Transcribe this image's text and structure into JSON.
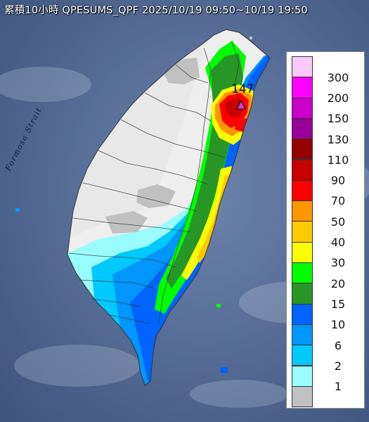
{
  "title": "累積10小時 QPESUMS_QPF 2025/10/19 09:50~10/19 19:50",
  "map_labels": {
    "strait": "Formosa Strait"
  },
  "peak": {
    "value": "147",
    "marker_color": "#d040d0"
  },
  "legend": [
    {
      "label": "300",
      "color": "#fdc9fd"
    },
    {
      "label": "200",
      "color": "#fd00fd"
    },
    {
      "label": "150",
      "color": "#c900c9"
    },
    {
      "label": "130",
      "color": "#990099"
    },
    {
      "label": "110",
      "color": "#960000"
    },
    {
      "label": "90",
      "color": "#c90000"
    },
    {
      "label": "70",
      "color": "#fd0000"
    },
    {
      "label": "50",
      "color": "#fd9600"
    },
    {
      "label": "40",
      "color": "#fdc900"
    },
    {
      "label": "30",
      "color": "#fdfd00"
    },
    {
      "label": "20",
      "color": "#00fd00"
    },
    {
      "label": "15",
      "color": "#279627"
    },
    {
      "label": "10",
      "color": "#0063fd"
    },
    {
      "label": "6",
      "color": "#0096fd"
    },
    {
      "label": "2",
      "color": "#00c9fd"
    },
    {
      "label": "1",
      "color": "#9afdfd"
    },
    {
      "label": "",
      "color": "#c0c0c0"
    }
  ]
}
